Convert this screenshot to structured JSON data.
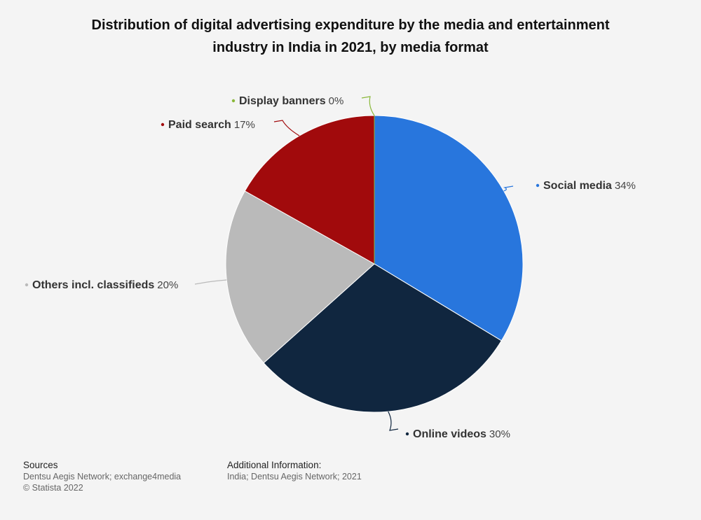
{
  "title": "Distribution of digital advertising expenditure by the media and entertainment industry in India in 2021, by media format",
  "chart_data": {
    "type": "pie",
    "title": "Distribution of digital advertising expenditure by the media and entertainment industry in India in 2021, by media format",
    "slices": [
      {
        "name": "Social media",
        "value": 34,
        "label": "34%",
        "color": "#2876dd"
      },
      {
        "name": "Online videos",
        "value": 30,
        "label": "30%",
        "color": "#10263f"
      },
      {
        "name": "Others incl. classifieds",
        "value": 20,
        "label": "20%",
        "color": "#bababa"
      },
      {
        "name": "Paid search",
        "value": 17,
        "label": "17%",
        "color": "#a10a0c"
      },
      {
        "name": "Display banners",
        "value": 0,
        "label": "0%",
        "color": "#8ab83a"
      }
    ],
    "start": "12 o'clock",
    "direction": "clockwise"
  },
  "footer": {
    "sources_heading": "Sources",
    "sources_line1": "Dentsu Aegis Network; exchange4media",
    "sources_line2": "© Statista 2022",
    "additional_heading": "Additional Information:",
    "additional_line1": "India; Dentsu Aegis Network; 2021"
  }
}
